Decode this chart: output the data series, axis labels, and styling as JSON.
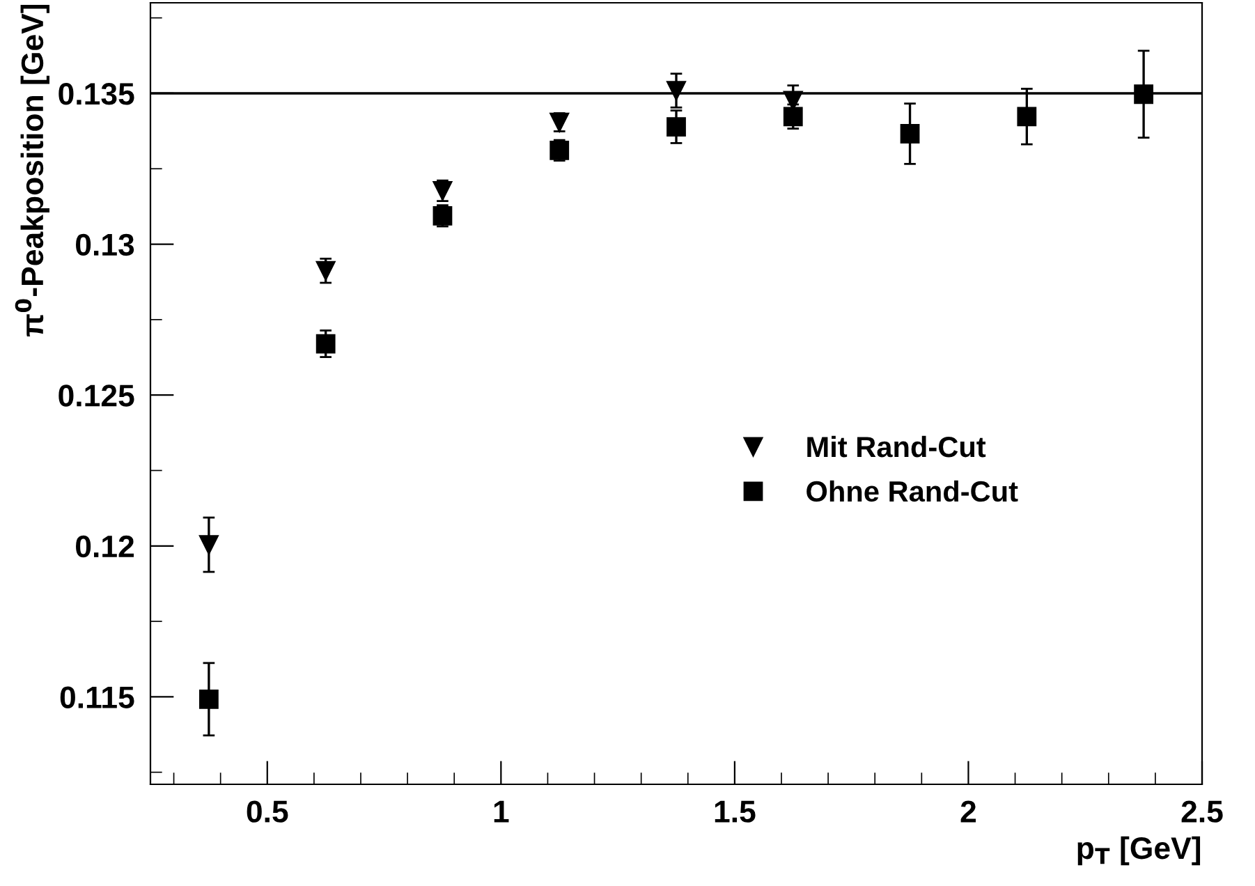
{
  "chart_data": {
    "type": "scatter",
    "xlabel": "p$_{T}$ [GeV]",
    "ylabel": "π$^{0}$-Peakposition [GeV]",
    "x": [
      0.375,
      0.625,
      0.875,
      1.125,
      1.375,
      1.625,
      1.875,
      2.125,
      2.375
    ],
    "series": [
      {
        "name": "Mit Rand-Cut",
        "color": "#000000",
        "marker": "triangle",
        "values": [
          0.12004,
          0.12912,
          0.13177,
          0.13404,
          0.13509,
          0.13476,
          null,
          null,
          null
        ],
        "errors": [
          0.0009,
          0.0004,
          0.00034,
          0.0003,
          0.00056,
          0.0005,
          null,
          null,
          null
        ]
      },
      {
        "name": "Ohne Rand-Cut",
        "color": "#000000",
        "marker": "square",
        "values": [
          0.11492,
          0.1267,
          0.13094,
          0.13311,
          0.13389,
          0.13423,
          0.13366,
          0.13423,
          0.13497
        ],
        "errors": [
          0.0012,
          0.00044,
          0.00035,
          0.00034,
          0.00054,
          0.0004,
          0.001,
          0.00092,
          0.00144
        ]
      }
    ],
    "xlim": [
      0.25,
      2.5
    ],
    "ylim": [
      0.1121,
      0.138
    ],
    "xticks": [
      0.5,
      1,
      1.5,
      2,
      2.5
    ],
    "yticks": [
      0.115,
      0.12,
      0.125,
      0.13,
      0.135
    ],
    "ref_lines": [
      {
        "axis": "y",
        "value": 0.135,
        "color": "#000000"
      }
    ],
    "grid": false,
    "legend": "right"
  }
}
